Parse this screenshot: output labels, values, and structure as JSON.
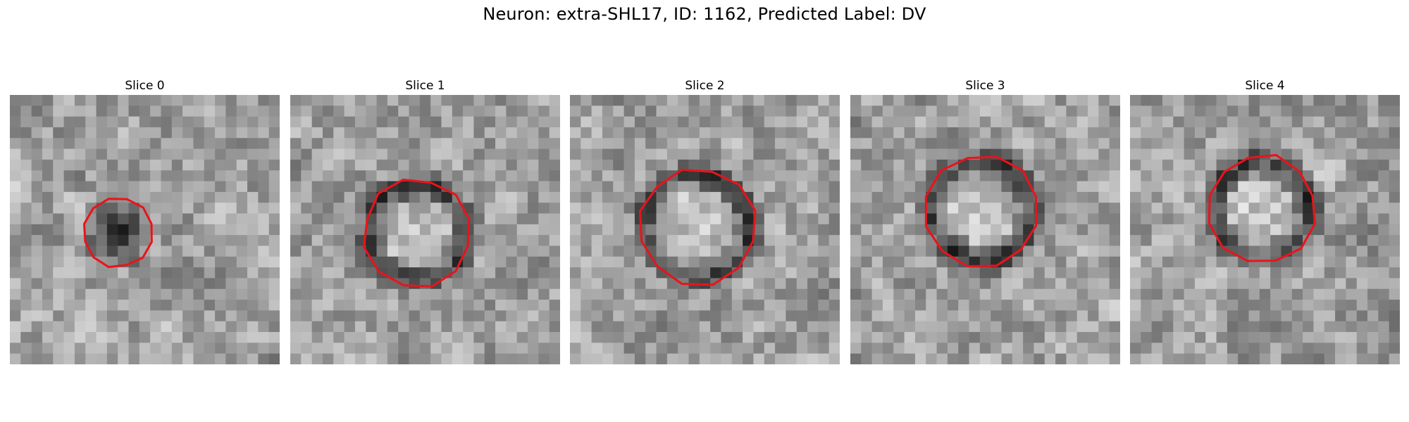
{
  "figure": {
    "title": "Neuron: extra-SHL17, ID: 1162, Predicted Label: DV"
  },
  "colors": {
    "contour": "#e8141c",
    "background": "#ffffff"
  },
  "slices": [
    {
      "label": "Slice 0",
      "seed": 11,
      "cx": 10.0,
      "cy": 12.8,
      "r": 3.2,
      "ring": false,
      "core_dark": true
    },
    {
      "label": "Slice 1",
      "seed": 23,
      "cx": 11.8,
      "cy": 12.8,
      "r": 5.0,
      "ring": true,
      "core_dark": false
    },
    {
      "label": "Slice 2",
      "seed": 37,
      "cx": 11.8,
      "cy": 12.2,
      "r": 5.4,
      "ring": true,
      "core_dark": false
    },
    {
      "label": "Slice 3",
      "seed": 41,
      "cx": 12.2,
      "cy": 10.8,
      "r": 5.2,
      "ring": true,
      "core_dark": false
    },
    {
      "label": "Slice 4",
      "seed": 53,
      "cx": 12.2,
      "cy": 10.6,
      "r": 5.0,
      "ring": true,
      "core_dark": false
    }
  ]
}
